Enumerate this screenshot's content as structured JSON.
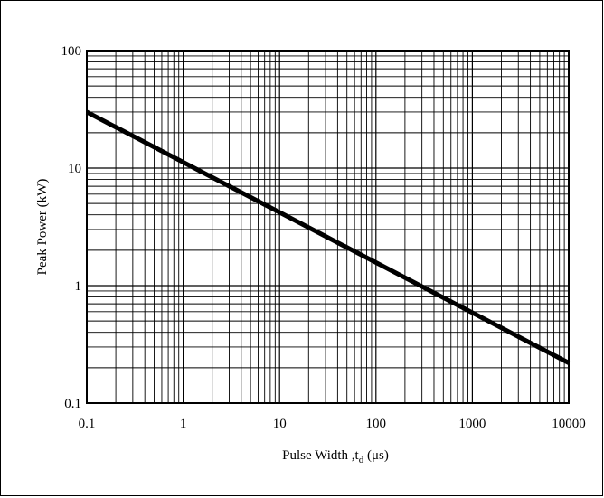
{
  "chart_data": {
    "type": "line",
    "x_scale": "log",
    "y_scale": "log",
    "xlim": [
      0.1,
      10000
    ],
    "ylim": [
      0.1,
      100
    ],
    "x_ticks": [
      "0.1",
      "1",
      "10",
      "100",
      "1000",
      "10000"
    ],
    "y_ticks": [
      "0.1",
      "1",
      "10",
      "100"
    ],
    "xlabel_main": "Pulse Width ,t",
    "xlabel_sub": "d",
    "xlabel_unit": " (μs)",
    "ylabel": "Peak Power  (kW)",
    "grid": "log-minor",
    "series": [
      {
        "color": "#000000",
        "points": [
          [
            0.1,
            30
          ],
          [
            10000,
            0.22
          ]
        ]
      }
    ]
  }
}
